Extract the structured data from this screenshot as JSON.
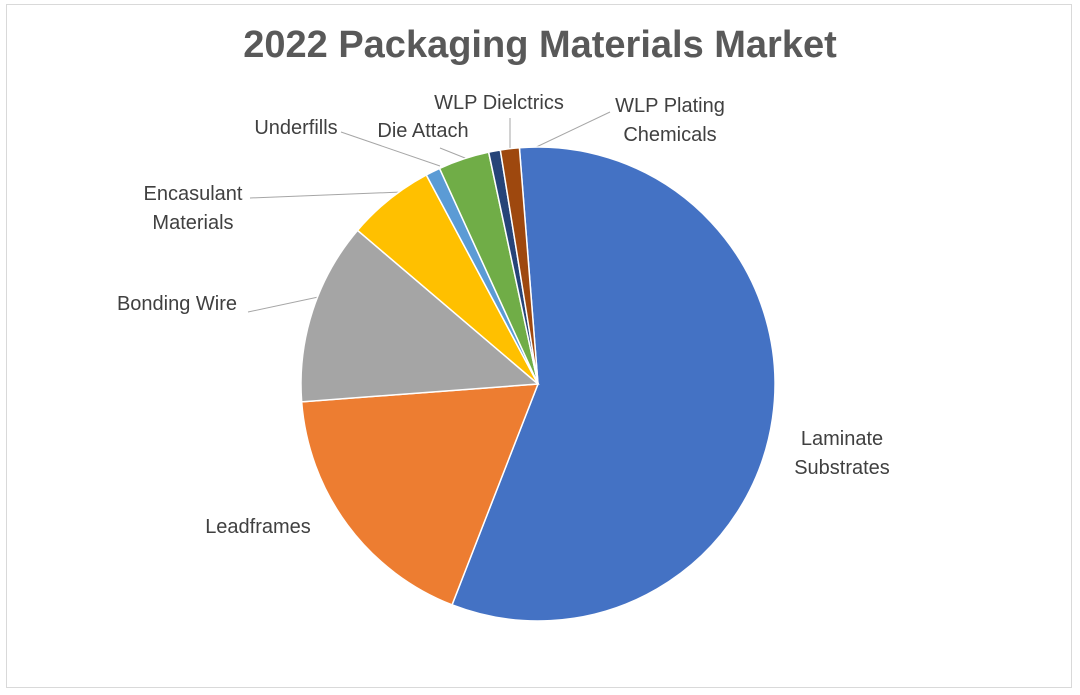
{
  "chart_data": {
    "type": "pie",
    "title": "2022 Packaging Materials Market",
    "slices": [
      {
        "label": "Laminate Substrates",
        "label_lines": [
          "Laminate",
          "Substrates"
        ],
        "value": 57.5,
        "color": "#4472c4"
      },
      {
        "label": "Leadframes",
        "label_lines": [
          "Leadframes"
        ],
        "value": 18.0,
        "color": "#ed7d31"
      },
      {
        "label": "Bonding Wire",
        "label_lines": [
          "Bonding Wire"
        ],
        "value": 12.5,
        "color": "#a5a5a5"
      },
      {
        "label": "Encasulant Materials",
        "label_lines": [
          "Encasulant",
          "Materials"
        ],
        "value": 6.0,
        "color": "#ffc000"
      },
      {
        "label": "Underfills",
        "label_lines": [
          "Underfills"
        ],
        "value": 1.0,
        "color": "#5b9bd5"
      },
      {
        "label": "Die Attach",
        "label_lines": [
          "Die Attach"
        ],
        "value": 3.5,
        "color": "#70ad47"
      },
      {
        "label": "WLP Dielctrics",
        "label_lines": [
          "WLP Dielctrics"
        ],
        "value": 0.8,
        "color": "#264478"
      },
      {
        "label": "WLP Plating Chemicals",
        "label_lines": [
          "WLP Plating",
          "Chemicals"
        ],
        "value": 1.3,
        "color": "#9e480e"
      }
    ]
  }
}
